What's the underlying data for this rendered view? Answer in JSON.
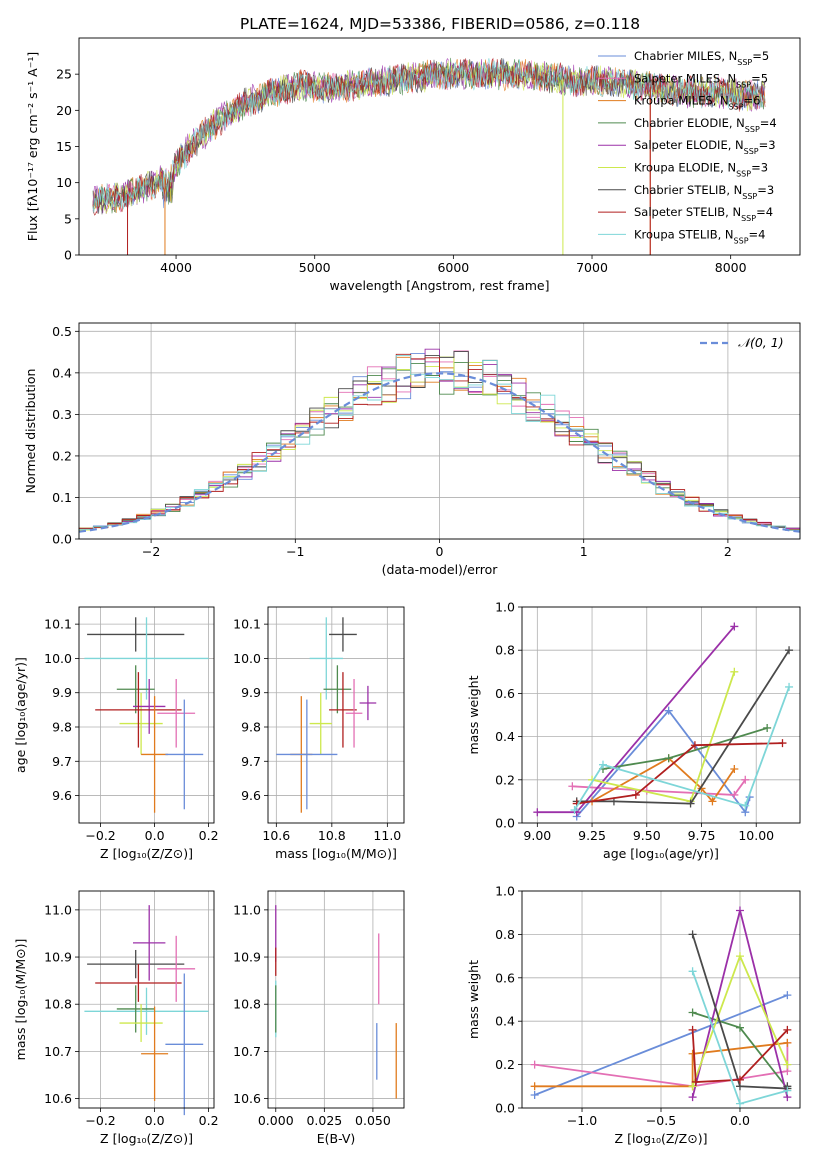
{
  "title": "PLATE=1624, MJD=53386, FIBERID=0586, z=0.118",
  "colors": {
    "Chabrier MILES": "#6a8dd9",
    "Salpeter MILES": "#e36fb4",
    "Kroupa MILES": "#e07b1e",
    "Chabrier ELODIE": "#4f8a4f",
    "Salpeter ELODIE": "#9b30a8",
    "Kroupa ELODIE": "#cde84d",
    "Chabrier STELIB": "#4a4a4a",
    "Salpeter STELIB": "#b01f1f",
    "Kroupa STELIB": "#7ed6d8"
  },
  "chart_data": [
    {
      "id": "spectrum",
      "type": "line",
      "xlabel": "wavelength [Angstrom, rest frame]",
      "ylabel": "Flux [fλ10⁻¹⁷ erg cm⁻² s⁻¹ A⁻¹]",
      "xlim": [
        3300,
        8500
      ],
      "ylim": [
        0,
        30
      ],
      "xticks": [
        "4000",
        "5000",
        "6000",
        "7000",
        "8000"
      ],
      "yticks": [
        "0",
        "5",
        "10",
        "15",
        "20",
        "25"
      ],
      "legend_position": "right",
      "legend": [
        {
          "model": "Chabrier MILES",
          "label": "Chabrier MILES, N",
          "sub": "SSP",
          "n": "=5"
        },
        {
          "model": "Salpeter MILES",
          "label": "Salpeter MILES, N",
          "sub": "SSP",
          "n": "=5"
        },
        {
          "model": "Kroupa MILES",
          "label": "Kroupa MILES, N",
          "sub": "SSP",
          "n": "=6"
        },
        {
          "model": "Chabrier ELODIE",
          "label": "Chabrier ELODIE, N",
          "sub": "SSP",
          "n": "=4"
        },
        {
          "model": "Salpeter ELODIE",
          "label": "Salpeter ELODIE, N",
          "sub": "SSP",
          "n": "=3"
        },
        {
          "model": "Kroupa ELODIE",
          "label": "Kroupa ELODIE, N",
          "sub": "SSP",
          "n": "=3"
        },
        {
          "model": "Chabrier STELIB",
          "label": "Chabrier STELIB, N",
          "sub": "SSP",
          "n": "=3"
        },
        {
          "model": "Salpeter STELIB",
          "label": "Salpeter STELIB, N",
          "sub": "SSP",
          "n": "=4"
        },
        {
          "model": "Kroupa STELIB",
          "label": "Kroupa STELIB, N",
          "sub": "SSP",
          "n": "=4"
        }
      ],
      "envelope": {
        "x": [
          3400,
          3600,
          3800,
          3950,
          4100,
          4300,
          4500,
          4700,
          4900,
          5100,
          5300,
          5500,
          5700,
          5900,
          6100,
          6300,
          6500,
          6700,
          6900,
          7100,
          7300,
          7500,
          7700,
          7900,
          8100,
          8250
        ],
        "y": [
          7.5,
          8,
          9.5,
          11,
          15,
          18.5,
          21,
          22.5,
          23.5,
          23,
          23.5,
          24,
          24.5,
          25,
          25,
          25,
          25,
          24.5,
          24,
          24,
          23.5,
          23,
          22.5,
          22.5,
          22,
          22
        ]
      },
      "drops": [
        {
          "model": "Salpeter STELIB",
          "x": 3650
        },
        {
          "model": "Kroupa MILES",
          "x": 3920
        },
        {
          "model": "Kroupa ELODIE",
          "x": 6790
        },
        {
          "model": "Kroupa MILES",
          "x": 7420
        },
        {
          "model": "Salpeter STELIB",
          "x": 7420
        }
      ]
    },
    {
      "id": "residuals",
      "type": "histogram",
      "xlabel": "(data-model)/error",
      "ylabel": "Normed distribution",
      "xlim": [
        -2.5,
        2.5
      ],
      "ylim": [
        0,
        0.52
      ],
      "xticks": [
        -2,
        -1,
        0,
        1,
        2
      ],
      "yticks": [
        0.0,
        0.1,
        0.2,
        0.3,
        0.4,
        0.5
      ],
      "legend": [
        {
          "label": "𝒩(0, 1)",
          "style": "dashed",
          "color": "#6a8dd9"
        }
      ],
      "legend_position": "top-right",
      "bin_width": 0.1,
      "n_bins": 50,
      "curve": "normal pdf, mean 0, sigma 1"
    },
    {
      "id": "age-vs-Z",
      "type": "errorbar",
      "xlabel": "Z [log₁₀(Z/Z⊙)]",
      "ylabel": "age  [log₁₀(age/yr)]",
      "xlim": [
        -0.28,
        0.22
      ],
      "ylim": [
        9.52,
        10.15
      ],
      "xticks": [
        "−0.2",
        "0.0",
        "0.2"
      ],
      "yticks": [
        "9.6",
        "9.7",
        "9.8",
        "9.9",
        "10.0",
        "10.1"
      ],
      "points": [
        {
          "model": "Chabrier STELIB",
          "x": -0.07,
          "xerr": 0.18,
          "y": 10.07,
          "yerr": 0.05
        },
        {
          "model": "Kroupa STELIB",
          "x": -0.03,
          "xerr": 0.23,
          "y": 10.0,
          "yerr": 0.12
        },
        {
          "model": "Chabrier ELODIE",
          "x": -0.07,
          "xerr": 0.07,
          "y": 9.91,
          "yerr": 0.07
        },
        {
          "model": "Kroupa ELODIE",
          "x": -0.05,
          "xerr": 0.08,
          "y": 9.81,
          "yerr": 0.09
        },
        {
          "model": "Salpeter ELODIE",
          "x": -0.02,
          "xerr": 0.06,
          "y": 9.86,
          "yerr": 0.08
        },
        {
          "model": "Salpeter STELIB",
          "x": -0.06,
          "xerr": 0.16,
          "y": 9.85,
          "yerr": 0.11
        },
        {
          "model": "Salpeter MILES",
          "x": 0.08,
          "xerr": 0.07,
          "y": 9.84,
          "yerr": 0.1
        },
        {
          "model": "Kroupa MILES",
          "x": 0.0,
          "xerr": 0.05,
          "y": 9.72,
          "yerr": 0.17
        },
        {
          "model": "Chabrier MILES",
          "x": 0.11,
          "xerr": 0.07,
          "y": 9.72,
          "yerr": 0.16
        }
      ]
    },
    {
      "id": "age-vs-mass",
      "type": "errorbar",
      "xlabel": "mass [log₁₀(M/M⊙)]",
      "ylabel": "",
      "xlim": [
        10.57,
        11.06
      ],
      "ylim": [
        9.52,
        10.15
      ],
      "xticks": [
        "10.6",
        "10.8",
        "11.0"
      ],
      "yticks": [
        "9.6",
        "9.7",
        "9.8",
        "9.9",
        "10.0",
        "10.1"
      ],
      "points": [
        {
          "model": "Chabrier STELIB",
          "x": 10.84,
          "xerr": 0.05,
          "y": 10.07,
          "yerr": 0.05
        },
        {
          "model": "Kroupa STELIB",
          "x": 10.78,
          "xerr": 0.06,
          "y": 10.0,
          "yerr": 0.12
        },
        {
          "model": "Chabrier ELODIE",
          "x": 10.82,
          "xerr": 0.05,
          "y": 9.91,
          "yerr": 0.07
        },
        {
          "model": "Kroupa ELODIE",
          "x": 10.76,
          "xerr": 0.04,
          "y": 9.81,
          "yerr": 0.09
        },
        {
          "model": "Salpeter ELODIE",
          "x": 10.93,
          "xerr": 0.03,
          "y": 9.87,
          "yerr": 0.05
        },
        {
          "model": "Salpeter STELIB",
          "x": 10.84,
          "xerr": 0.05,
          "y": 9.85,
          "yerr": 0.11
        },
        {
          "model": "Salpeter MILES",
          "x": 10.88,
          "xerr": 0.03,
          "y": 9.84,
          "yerr": 0.1
        },
        {
          "model": "Kroupa MILES",
          "x": 10.69,
          "xerr": 0.04,
          "y": 9.72,
          "yerr": 0.17
        },
        {
          "model": "Chabrier MILES",
          "x": 10.71,
          "xerr": 0.11,
          "y": 9.72,
          "yerr": 0.16
        }
      ]
    },
    {
      "id": "weight-vs-age",
      "type": "line",
      "xlabel": "age  [log₁₀(age/yr)]",
      "ylabel": "mass weight",
      "xlim": [
        8.93,
        10.2
      ],
      "ylim": [
        0,
        1
      ],
      "xticks": [
        "9.00",
        "9.25",
        "9.50",
        "9.75",
        "10.00"
      ],
      "yticks": [
        "0.0",
        "0.2",
        "0.4",
        "0.6",
        "0.8",
        "1.0"
      ],
      "series": [
        {
          "model": "Chabrier MILES",
          "x": [
            9.18,
            9.6,
            9.95,
            9.97
          ],
          "y": [
            0.03,
            0.52,
            0.05,
            0.12
          ]
        },
        {
          "model": "Salpeter MILES",
          "x": [
            9.16,
            9.5,
            9.9,
            9.95
          ],
          "y": [
            0.17,
            0.15,
            0.13,
            0.2
          ]
        },
        {
          "model": "Kroupa MILES",
          "x": [
            9.25,
            9.6,
            9.75,
            9.8,
            9.9
          ],
          "y": [
            0.1,
            0.3,
            0.16,
            0.1,
            0.25
          ]
        },
        {
          "model": "Chabrier ELODIE",
          "x": [
            9.3,
            9.6,
            10.05
          ],
          "y": [
            0.25,
            0.3,
            0.44
          ]
        },
        {
          "model": "Salpeter ELODIE",
          "x": [
            9.0,
            9.18,
            9.9
          ],
          "y": [
            0.05,
            0.05,
            0.91
          ]
        },
        {
          "model": "Kroupa ELODIE",
          "x": [
            9.25,
            9.7,
            9.9
          ],
          "y": [
            0.2,
            0.1,
            0.7
          ]
        },
        {
          "model": "Chabrier STELIB",
          "x": [
            9.18,
            9.35,
            9.7,
            10.15
          ],
          "y": [
            0.1,
            0.1,
            0.09,
            0.8
          ]
        },
        {
          "model": "Salpeter STELIB",
          "x": [
            9.18,
            9.45,
            9.72,
            10.12
          ],
          "y": [
            0.09,
            0.13,
            0.36,
            0.37
          ]
        },
        {
          "model": "Kroupa STELIB",
          "x": [
            9.17,
            9.3,
            9.95,
            10.15
          ],
          "y": [
            0.06,
            0.27,
            0.08,
            0.63
          ]
        }
      ]
    },
    {
      "id": "mass-vs-Z",
      "type": "errorbar",
      "xlabel": "Z [log₁₀(Z/Z⊙)]",
      "ylabel": "mass [log₁₀(M/M⊙)]",
      "xlim": [
        -0.28,
        0.22
      ],
      "ylim": [
        10.58,
        11.04
      ],
      "xticks": [
        "−0.2",
        "0.0",
        "0.2"
      ],
      "yticks": [
        "10.6",
        "10.7",
        "10.8",
        "10.9",
        "11.0"
      ],
      "points": [
        {
          "model": "Chabrier STELIB",
          "x": -0.07,
          "xerr": 0.18,
          "y": 10.885,
          "yerr": 0.03
        },
        {
          "model": "Salpeter STELIB",
          "x": -0.06,
          "xerr": 0.16,
          "y": 10.845,
          "yerr": 0.04
        },
        {
          "model": "Kroupa STELIB",
          "x": -0.03,
          "xerr": 0.23,
          "y": 10.785,
          "yerr": 0.05
        },
        {
          "model": "Chabrier ELODIE",
          "x": -0.07,
          "xerr": 0.07,
          "y": 10.79,
          "yerr": 0.05
        },
        {
          "model": "Kroupa ELODIE",
          "x": -0.05,
          "xerr": 0.08,
          "y": 10.76,
          "yerr": 0.04
        },
        {
          "model": "Salpeter ELODIE",
          "x": -0.02,
          "xerr": 0.06,
          "y": 10.93,
          "yerr": 0.08
        },
        {
          "model": "Salpeter MILES",
          "x": 0.08,
          "xerr": 0.07,
          "y": 10.875,
          "yerr": 0.07
        },
        {
          "model": "Kroupa MILES",
          "x": 0.0,
          "xerr": 0.05,
          "y": 10.695,
          "yerr": 0.1
        },
        {
          "model": "Chabrier MILES",
          "x": 0.11,
          "xerr": 0.07,
          "y": 10.715,
          "yerr": 0.15
        }
      ]
    },
    {
      "id": "mass-vs-ebv",
      "type": "errorbar",
      "xlabel": "E(B-V)",
      "ylabel": "",
      "xlim": [
        -0.004,
        0.066
      ],
      "ylim": [
        10.58,
        11.04
      ],
      "xticks": [
        "0.000",
        "0.025",
        "0.050"
      ],
      "yticks": [
        "10.6",
        "10.7",
        "10.8",
        "10.9",
        "11.0"
      ],
      "points": [
        {
          "model": "Salpeter ELODIE",
          "x": 0.0,
          "xerr": 0,
          "y": 10.95,
          "yerr": 0.06
        },
        {
          "model": "Salpeter STELIB",
          "x": 0.0,
          "xerr": 0,
          "y": 10.89,
          "yerr": 0.03
        },
        {
          "model": "Kroupa STELIB",
          "x": 0.0,
          "xerr": 0,
          "y": 10.79,
          "yerr": 0.06
        },
        {
          "model": "Chabrier ELODIE",
          "x": 0.0,
          "xerr": 0,
          "y": 10.79,
          "yerr": 0.05
        },
        {
          "model": "Salpeter MILES",
          "x": 0.053,
          "xerr": 0,
          "y": 10.875,
          "yerr": 0.075
        },
        {
          "model": "Chabrier MILES",
          "x": 0.052,
          "xerr": 0,
          "y": 10.7,
          "yerr": 0.06
        },
        {
          "model": "Kroupa MILES",
          "x": 0.062,
          "xerr": 0,
          "y": 10.68,
          "yerr": 0.08
        }
      ]
    },
    {
      "id": "weight-vs-Z",
      "type": "line",
      "xlabel": "Z [log₁₀(Z/Z⊙)]",
      "ylabel": "mass weight",
      "xlim": [
        -1.38,
        0.38
      ],
      "ylim": [
        0,
        1
      ],
      "xticks": [
        "−1.0",
        "−0.5",
        "0.0"
      ],
      "yticks": [
        "0.0",
        "0.2",
        "0.4",
        "0.6",
        "0.8",
        "1.0"
      ],
      "series": [
        {
          "model": "Chabrier MILES",
          "x": [
            -1.3,
            0.3
          ],
          "y": [
            0.06,
            0.52
          ]
        },
        {
          "model": "Salpeter MILES",
          "x": [
            -1.3,
            -0.3,
            0.3,
            0.3
          ],
          "y": [
            0.2,
            0.1,
            0.17,
            0.3
          ]
        },
        {
          "model": "Kroupa MILES",
          "x": [
            -1.3,
            -0.3,
            -0.3,
            0.3
          ],
          "y": [
            0.1,
            0.1,
            0.25,
            0.3
          ]
        },
        {
          "model": "Chabrier ELODIE",
          "x": [
            -0.3,
            0.0,
            0.3
          ],
          "y": [
            0.44,
            0.37,
            0.09
          ]
        },
        {
          "model": "Salpeter ELODIE",
          "x": [
            -0.3,
            0.0,
            0.3
          ],
          "y": [
            0.05,
            0.91,
            0.05
          ]
        },
        {
          "model": "Kroupa ELODIE",
          "x": [
            -0.3,
            0.0,
            0.3
          ],
          "y": [
            0.1,
            0.7,
            0.2
          ]
        },
        {
          "model": "Chabrier STELIB",
          "x": [
            -0.3,
            0.0,
            0.3,
            0.3
          ],
          "y": [
            0.8,
            0.1,
            0.09,
            0.1
          ]
        },
        {
          "model": "Salpeter STELIB",
          "x": [
            -0.3,
            -0.28,
            0.0,
            0.3
          ],
          "y": [
            0.36,
            0.12,
            0.13,
            0.36
          ]
        },
        {
          "model": "Kroupa STELIB",
          "x": [
            -0.3,
            0.0,
            0.3
          ],
          "y": [
            0.63,
            0.02,
            0.08
          ]
        }
      ]
    }
  ]
}
